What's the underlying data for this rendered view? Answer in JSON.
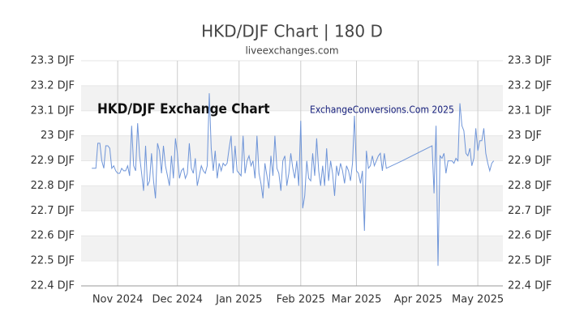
{
  "chart_data": {
    "type": "line",
    "title": "HKD/DJF Chart | 180 D",
    "subtitle": "liveexchanges.com",
    "annotations": [
      "HKD/DJF Exchange Chart",
      "ExchangeConversions.Com 2025"
    ],
    "x": [
      18,
      19,
      20,
      21,
      22,
      23,
      24,
      25,
      26,
      27,
      28,
      29,
      30,
      31,
      32,
      33,
      34,
      35,
      36,
      37,
      38,
      39,
      40,
      41,
      42,
      43,
      44,
      45,
      46,
      47,
      48,
      49,
      50,
      51,
      52,
      53,
      54,
      55,
      56,
      57,
      58,
      59,
      60,
      61,
      62,
      63,
      64,
      65,
      66,
      67,
      68,
      69,
      70,
      71,
      72,
      73,
      74,
      75,
      76,
      77,
      78,
      79,
      80,
      81,
      82,
      83,
      84,
      85,
      86,
      87,
      88,
      89,
      90,
      91,
      92,
      93,
      94,
      95,
      96,
      97,
      98,
      99,
      100,
      101,
      102,
      103,
      104,
      105,
      106,
      107,
      108,
      109,
      110,
      111,
      112,
      113,
      114,
      115,
      116,
      117,
      118,
      119,
      120,
      121,
      122,
      123,
      124,
      125,
      126,
      127,
      128,
      129,
      130,
      131,
      132,
      133,
      134,
      135,
      136,
      137,
      138,
      139,
      140,
      141,
      142,
      143,
      144,
      145,
      146,
      147,
      148,
      149,
      150,
      151,
      152,
      153,
      154,
      155,
      156,
      157,
      158,
      159,
      160,
      161,
      162,
      163,
      164,
      165,
      166,
      174,
      189,
      190,
      191,
      192,
      193,
      194,
      195,
      196,
      197,
      198,
      199,
      200,
      201,
      202,
      203,
      204,
      205,
      206,
      207,
      208,
      209,
      210,
      211,
      212,
      213,
      214,
      215,
      216,
      217,
      218,
      219,
      220
    ],
    "series": [
      {
        "name": "HKD/DJF",
        "color": "#6f95d8",
        "values": [
          22.87,
          22.87,
          22.87,
          22.97,
          22.97,
          22.9,
          22.87,
          22.96,
          22.96,
          22.95,
          22.87,
          22.88,
          22.86,
          22.85,
          22.85,
          22.87,
          22.86,
          22.86,
          22.88,
          22.84,
          23.04,
          22.88,
          22.86,
          23.05,
          22.92,
          22.85,
          22.78,
          22.96,
          22.8,
          22.82,
          22.93,
          22.82,
          22.75,
          22.97,
          22.94,
          22.85,
          22.96,
          22.88,
          22.84,
          22.8,
          22.92,
          22.83,
          22.99,
          22.93,
          22.83,
          22.86,
          22.87,
          22.83,
          22.85,
          22.97,
          22.87,
          22.85,
          22.91,
          22.8,
          22.84,
          22.88,
          22.86,
          22.85,
          22.88,
          23.17,
          22.95,
          22.86,
          22.94,
          22.83,
          22.89,
          22.86,
          22.89,
          22.88,
          22.89,
          22.95,
          23.0,
          22.85,
          22.96,
          22.86,
          22.85,
          22.84,
          23.0,
          22.85,
          22.9,
          22.92,
          22.88,
          22.9,
          22.83,
          23.0,
          22.85,
          22.81,
          22.75,
          22.89,
          22.84,
          22.79,
          22.92,
          22.84,
          23.0,
          22.87,
          22.85,
          22.78,
          22.9,
          22.92,
          22.8,
          22.85,
          22.93,
          22.87,
          22.83,
          22.9,
          22.8,
          23.06,
          22.71,
          22.76,
          22.9,
          22.83,
          22.82,
          22.93,
          22.84,
          22.99,
          22.86,
          22.8,
          22.88,
          22.8,
          22.95,
          22.82,
          22.9,
          22.85,
          22.76,
          22.88,
          22.84,
          22.89,
          22.86,
          22.81,
          22.88,
          22.86,
          22.82,
          22.89,
          23.08,
          22.86,
          22.85,
          22.81,
          22.86,
          22.62,
          22.94,
          22.87,
          22.88,
          22.92,
          22.88,
          22.9,
          22.92,
          22.93,
          22.86,
          22.93,
          22.87,
          22.9,
          22.96,
          22.77,
          23.04,
          22.48,
          22.92,
          22.91,
          22.93,
          22.85,
          22.9,
          22.9,
          22.9,
          22.89,
          22.91,
          22.9,
          23.13,
          23.04,
          23.02,
          22.93,
          22.92,
          22.95,
          22.88,
          22.91,
          23.03,
          22.94,
          22.98,
          22.98,
          23.03,
          22.93,
          22.89,
          22.86,
          22.89,
          22.9
        ]
      }
    ],
    "xlim": [
      12.6,
      224.6
    ],
    "xticks": [
      {
        "value": 31,
        "label": "Nov 2024"
      },
      {
        "value": 61,
        "label": "Dec 2024"
      },
      {
        "value": 92,
        "label": "Jan 2025"
      },
      {
        "value": 123,
        "label": "Feb 2025"
      },
      {
        "value": 151,
        "label": "Mar 2025"
      },
      {
        "value": 182,
        "label": "Apr 2025"
      },
      {
        "value": 212,
        "label": "May 2025"
      }
    ],
    "ylim": [
      22.4,
      23.3
    ],
    "yticks": [
      {
        "value": 22.4,
        "label": "22.4 DJF"
      },
      {
        "value": 22.5,
        "label": "22.5 DJF"
      },
      {
        "value": 22.6,
        "label": "22.6 DJF"
      },
      {
        "value": 22.7,
        "label": "22.7 DJF"
      },
      {
        "value": 22.8,
        "label": "22.8 DJF"
      },
      {
        "value": 22.9,
        "label": "22.9 DJF"
      },
      {
        "value": 23,
        "label": "23 DJF"
      },
      {
        "value": 23.1,
        "label": "23.1 DJF"
      },
      {
        "value": 23.2,
        "label": "23.2 DJF"
      },
      {
        "value": 23.3,
        "label": "23.3 DJF"
      }
    ],
    "grid": true
  }
}
